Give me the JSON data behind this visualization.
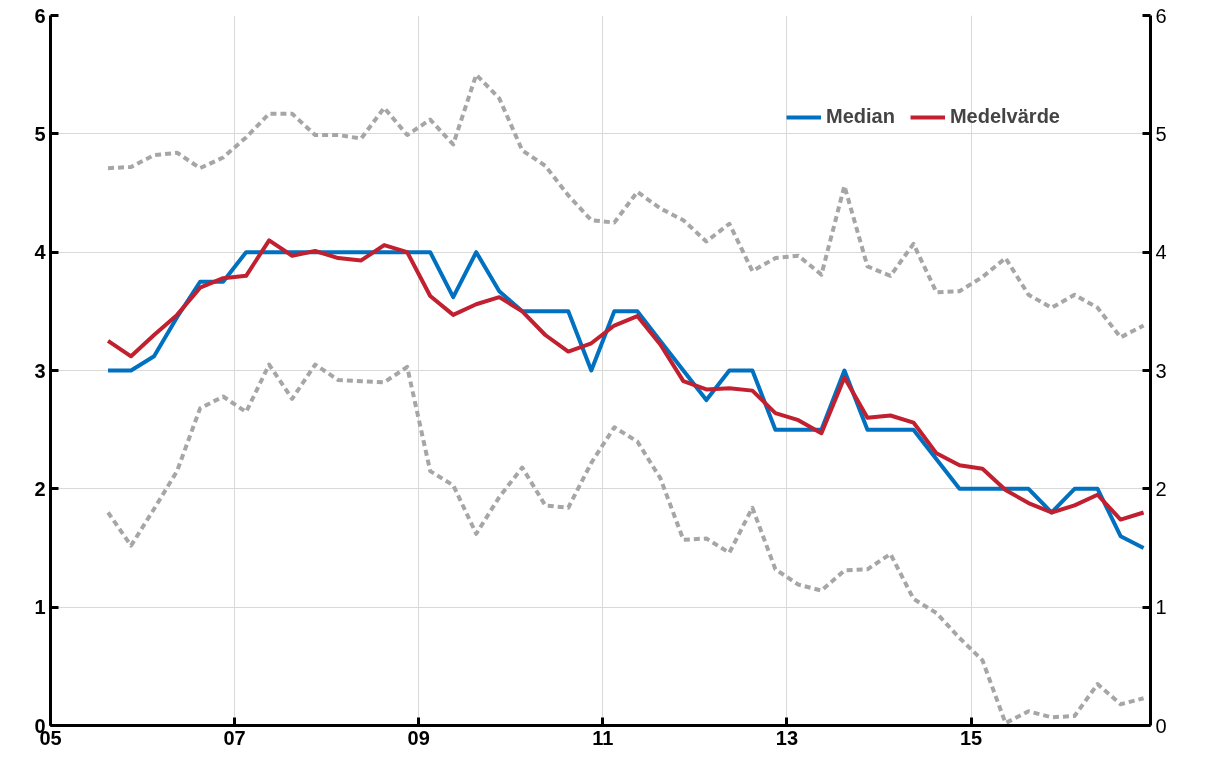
{
  "chart_data": {
    "type": "line",
    "x": [
      2005.625,
      2005.875,
      2006.125,
      2006.375,
      2006.625,
      2006.875,
      2007.125,
      2007.375,
      2007.625,
      2007.875,
      2008.125,
      2008.375,
      2008.625,
      2008.875,
      2009.125,
      2009.375,
      2009.625,
      2009.875,
      2010.125,
      2010.375,
      2010.625,
      2010.875,
      2011.125,
      2011.375,
      2011.625,
      2011.875,
      2012.125,
      2012.375,
      2012.625,
      2012.875,
      2013.125,
      2013.375,
      2013.625,
      2013.875,
      2014.125,
      2014.375,
      2014.625,
      2014.875,
      2015.125,
      2015.375,
      2015.625,
      2015.875,
      2016.125,
      2016.375,
      2016.625,
      2016.875
    ],
    "series": [
      {
        "color": "#a6a6a6",
        "line_style": "dashed",
        "values": [
          4.71,
          4.72,
          4.82,
          4.84,
          4.71,
          4.8,
          4.97,
          5.17,
          5.17,
          4.99,
          4.99,
          4.96,
          5.22,
          4.99,
          5.12,
          4.91,
          5.5,
          5.3,
          4.86,
          4.73,
          4.48,
          4.27,
          4.25,
          4.51,
          4.37,
          4.27,
          4.09,
          4.24,
          3.84,
          3.95,
          3.97,
          3.81,
          4.56,
          3.88,
          3.8,
          4.07,
          3.66,
          3.67,
          3.79,
          3.95,
          3.64,
          3.53,
          3.64,
          3.53,
          3.28,
          3.38
        ]
      },
      {
        "color": "#a6a6a6",
        "line_style": "dashed",
        "values": [
          1.8,
          1.52,
          1.83,
          2.15,
          2.68,
          2.78,
          2.65,
          3.05,
          2.76,
          3.05,
          2.92,
          2.91,
          2.9,
          3.03,
          2.15,
          2.03,
          1.62,
          1.93,
          2.18,
          1.86,
          1.84,
          2.22,
          2.52,
          2.4,
          2.09,
          1.57,
          1.58,
          1.46,
          1.84,
          1.32,
          1.19,
          1.14,
          1.31,
          1.32,
          1.45,
          1.07,
          0.95,
          0.74,
          0.55,
          0.02,
          0.12,
          0.07,
          0.08,
          0.35,
          0.18,
          0.23
        ]
      },
      {
        "name": "Median",
        "color": "#0070c0",
        "line_style": "solid",
        "values": [
          3.0,
          3.0,
          3.12,
          3.45,
          3.75,
          3.75,
          4.0,
          4.0,
          4.0,
          4.0,
          4.0,
          4.0,
          4.0,
          4.0,
          4.0,
          3.62,
          4.0,
          3.67,
          3.5,
          3.5,
          3.5,
          3.0,
          3.5,
          3.5,
          3.25,
          3.0,
          2.75,
          3.0,
          3.0,
          2.5,
          2.5,
          2.5,
          3.0,
          2.5,
          2.5,
          2.5,
          2.25,
          2.0,
          2.0,
          2.0,
          2.0,
          1.8,
          2.0,
          2.0,
          1.6,
          1.5
        ]
      },
      {
        "name": "Medelvärde",
        "color": "#c0202f",
        "line_style": "solid",
        "values": [
          3.25,
          3.12,
          3.3,
          3.47,
          3.7,
          3.78,
          3.8,
          4.1,
          3.97,
          4.01,
          3.95,
          3.93,
          4.06,
          4.0,
          3.63,
          3.47,
          3.56,
          3.62,
          3.5,
          3.3,
          3.16,
          3.23,
          3.38,
          3.46,
          3.22,
          2.91,
          2.84,
          2.85,
          2.83,
          2.64,
          2.58,
          2.47,
          2.94,
          2.6,
          2.62,
          2.56,
          2.3,
          2.2,
          2.17,
          1.99,
          1.88,
          1.8,
          1.86,
          1.95,
          1.74,
          1.8
        ]
      }
    ],
    "xlim": [
      2005,
      2016.95
    ],
    "xticks": [
      {
        "value": 2005,
        "label": "05"
      },
      {
        "value": 2007,
        "label": "07"
      },
      {
        "value": 2009,
        "label": "09"
      },
      {
        "value": 2011,
        "label": "11"
      },
      {
        "value": 2013,
        "label": "13"
      },
      {
        "value": 2015,
        "label": "15"
      }
    ],
    "ylim": [
      0,
      6
    ],
    "yticks": [
      0,
      1,
      2,
      3,
      4,
      5,
      6
    ],
    "y2lim": [
      0,
      6
    ],
    "y2ticks": [
      0,
      1,
      2,
      3,
      4,
      5,
      6
    ],
    "grid": true,
    "legend": "top right"
  }
}
